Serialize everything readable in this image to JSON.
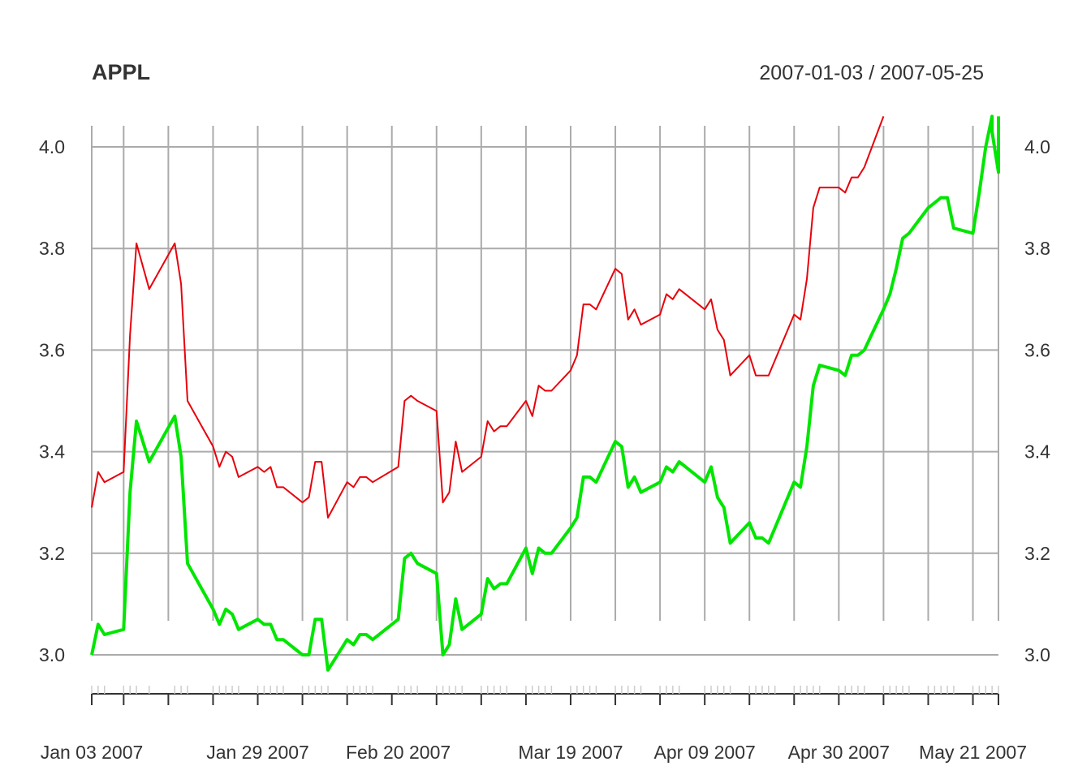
{
  "chart_data": {
    "type": "line",
    "title": "APPL",
    "date_range": "2007-01-03 / 2007-05-25",
    "ylim": [
      2.93,
      4.06
    ],
    "y_ticks": [
      "3.0",
      "3.2",
      "3.4",
      "3.6",
      "3.8",
      "4.0"
    ],
    "x_tick_labels": [
      {
        "date": "2007-01-03",
        "label": "Jan 03 2007"
      },
      {
        "date": "2007-01-29",
        "label": "Jan 29 2007"
      },
      {
        "date": "2007-02-20",
        "label": "Feb 20 2007"
      },
      {
        "date": "2007-03-19",
        "label": "Mar 19 2007"
      },
      {
        "date": "2007-04-09",
        "label": "Apr 09 2007"
      },
      {
        "date": "2007-04-30",
        "label": "Apr 30 2007"
      },
      {
        "date": "2007-05-21",
        "label": "May 21 2007"
      }
    ],
    "grid": true,
    "legend": "none",
    "series": [
      {
        "color": "#e8000b",
        "points": [
          [
            "2007-01-03",
            3.29
          ],
          [
            "2007-01-04",
            3.36
          ],
          [
            "2007-01-05",
            3.34
          ],
          [
            "2007-01-08",
            3.36
          ],
          [
            "2007-01-09",
            3.63
          ],
          [
            "2007-01-10",
            3.81
          ],
          [
            "2007-01-12",
            3.72
          ],
          [
            "2007-01-16",
            3.81
          ],
          [
            "2007-01-17",
            3.73
          ],
          [
            "2007-01-18",
            3.5
          ],
          [
            "2007-01-22",
            3.41
          ],
          [
            "2007-01-23",
            3.37
          ],
          [
            "2007-01-24",
            3.4
          ],
          [
            "2007-01-25",
            3.39
          ],
          [
            "2007-01-26",
            3.35
          ],
          [
            "2007-01-29",
            3.37
          ],
          [
            "2007-01-30",
            3.36
          ],
          [
            "2007-01-31",
            3.37
          ],
          [
            "2007-02-01",
            3.33
          ],
          [
            "2007-02-02",
            3.33
          ],
          [
            "2007-02-05",
            3.3
          ],
          [
            "2007-02-06",
            3.31
          ],
          [
            "2007-02-07",
            3.38
          ],
          [
            "2007-02-08",
            3.38
          ],
          [
            "2007-02-09",
            3.27
          ],
          [
            "2007-02-12",
            3.34
          ],
          [
            "2007-02-13",
            3.33
          ],
          [
            "2007-02-14",
            3.35
          ],
          [
            "2007-02-15",
            3.35
          ],
          [
            "2007-02-16",
            3.34
          ],
          [
            "2007-02-20",
            3.37
          ],
          [
            "2007-02-21",
            3.5
          ],
          [
            "2007-02-22",
            3.51
          ],
          [
            "2007-02-23",
            3.5
          ],
          [
            "2007-02-26",
            3.48
          ],
          [
            "2007-02-27",
            3.3
          ],
          [
            "2007-02-28",
            3.32
          ],
          [
            "2007-03-01",
            3.42
          ],
          [
            "2007-03-02",
            3.36
          ],
          [
            "2007-03-05",
            3.39
          ],
          [
            "2007-03-06",
            3.46
          ],
          [
            "2007-03-07",
            3.44
          ],
          [
            "2007-03-08",
            3.45
          ],
          [
            "2007-03-09",
            3.45
          ],
          [
            "2007-03-12",
            3.5
          ],
          [
            "2007-03-13",
            3.47
          ],
          [
            "2007-03-14",
            3.53
          ],
          [
            "2007-03-15",
            3.52
          ],
          [
            "2007-03-16",
            3.52
          ],
          [
            "2007-03-19",
            3.56
          ],
          [
            "2007-03-20",
            3.59
          ],
          [
            "2007-03-21",
            3.69
          ],
          [
            "2007-03-22",
            3.69
          ],
          [
            "2007-03-23",
            3.68
          ],
          [
            "2007-03-26",
            3.76
          ],
          [
            "2007-03-27",
            3.75
          ],
          [
            "2007-03-28",
            3.66
          ],
          [
            "2007-03-29",
            3.68
          ],
          [
            "2007-03-30",
            3.65
          ],
          [
            "2007-04-02",
            3.67
          ],
          [
            "2007-04-03",
            3.71
          ],
          [
            "2007-04-04",
            3.7
          ],
          [
            "2007-04-05",
            3.72
          ],
          [
            "2007-04-09",
            3.68
          ],
          [
            "2007-04-10",
            3.7
          ],
          [
            "2007-04-11",
            3.64
          ],
          [
            "2007-04-12",
            3.62
          ],
          [
            "2007-04-13",
            3.55
          ],
          [
            "2007-04-16",
            3.59
          ],
          [
            "2007-04-17",
            3.55
          ],
          [
            "2007-04-18",
            3.55
          ],
          [
            "2007-04-19",
            3.55
          ],
          [
            "2007-04-20",
            3.58
          ],
          [
            "2007-04-23",
            3.67
          ],
          [
            "2007-04-24",
            3.66
          ],
          [
            "2007-04-25",
            3.74
          ],
          [
            "2007-04-26",
            3.88
          ],
          [
            "2007-04-27",
            3.92
          ],
          [
            "2007-04-30",
            3.92
          ],
          [
            "2007-05-01",
            3.91
          ],
          [
            "2007-05-02",
            3.94
          ],
          [
            "2007-05-03",
            3.94
          ],
          [
            "2007-05-04",
            3.96
          ],
          [
            "2007-05-07",
            4.06
          ]
        ]
      },
      {
        "color": "#00e600",
        "points": [
          [
            "2007-01-03",
            3.0
          ],
          [
            "2007-01-04",
            3.06
          ],
          [
            "2007-01-05",
            3.04
          ],
          [
            "2007-01-08",
            3.05
          ],
          [
            "2007-01-09",
            3.32
          ],
          [
            "2007-01-10",
            3.46
          ],
          [
            "2007-01-12",
            3.38
          ],
          [
            "2007-01-16",
            3.47
          ],
          [
            "2007-01-17",
            3.39
          ],
          [
            "2007-01-18",
            3.18
          ],
          [
            "2007-01-22",
            3.09
          ],
          [
            "2007-01-23",
            3.06
          ],
          [
            "2007-01-24",
            3.09
          ],
          [
            "2007-01-25",
            3.08
          ],
          [
            "2007-01-26",
            3.05
          ],
          [
            "2007-01-29",
            3.07
          ],
          [
            "2007-01-30",
            3.06
          ],
          [
            "2007-01-31",
            3.06
          ],
          [
            "2007-02-01",
            3.03
          ],
          [
            "2007-02-02",
            3.03
          ],
          [
            "2007-02-05",
            3.0
          ],
          [
            "2007-02-06",
            3.0
          ],
          [
            "2007-02-07",
            3.07
          ],
          [
            "2007-02-08",
            3.07
          ],
          [
            "2007-02-09",
            2.97
          ],
          [
            "2007-02-12",
            3.03
          ],
          [
            "2007-02-13",
            3.02
          ],
          [
            "2007-02-14",
            3.04
          ],
          [
            "2007-02-15",
            3.04
          ],
          [
            "2007-02-16",
            3.03
          ],
          [
            "2007-02-20",
            3.07
          ],
          [
            "2007-02-21",
            3.19
          ],
          [
            "2007-02-22",
            3.2
          ],
          [
            "2007-02-23",
            3.18
          ],
          [
            "2007-02-26",
            3.16
          ],
          [
            "2007-02-27",
            3.0
          ],
          [
            "2007-02-28",
            3.02
          ],
          [
            "2007-03-01",
            3.11
          ],
          [
            "2007-03-02",
            3.05
          ],
          [
            "2007-03-05",
            3.08
          ],
          [
            "2007-03-06",
            3.15
          ],
          [
            "2007-03-07",
            3.13
          ],
          [
            "2007-03-08",
            3.14
          ],
          [
            "2007-03-09",
            3.14
          ],
          [
            "2007-03-12",
            3.21
          ],
          [
            "2007-03-13",
            3.16
          ],
          [
            "2007-03-14",
            3.21
          ],
          [
            "2007-03-15",
            3.2
          ],
          [
            "2007-03-16",
            3.2
          ],
          [
            "2007-03-19",
            3.25
          ],
          [
            "2007-03-20",
            3.27
          ],
          [
            "2007-03-21",
            3.35
          ],
          [
            "2007-03-22",
            3.35
          ],
          [
            "2007-03-23",
            3.34
          ],
          [
            "2007-03-26",
            3.42
          ],
          [
            "2007-03-27",
            3.41
          ],
          [
            "2007-03-28",
            3.33
          ],
          [
            "2007-03-29",
            3.35
          ],
          [
            "2007-03-30",
            3.32
          ],
          [
            "2007-04-02",
            3.34
          ],
          [
            "2007-04-03",
            3.37
          ],
          [
            "2007-04-04",
            3.36
          ],
          [
            "2007-04-05",
            3.38
          ],
          [
            "2007-04-09",
            3.34
          ],
          [
            "2007-04-10",
            3.37
          ],
          [
            "2007-04-11",
            3.31
          ],
          [
            "2007-04-12",
            3.29
          ],
          [
            "2007-04-13",
            3.22
          ],
          [
            "2007-04-16",
            3.26
          ],
          [
            "2007-04-17",
            3.23
          ],
          [
            "2007-04-18",
            3.23
          ],
          [
            "2007-04-19",
            3.22
          ],
          [
            "2007-04-20",
            3.25
          ],
          [
            "2007-04-23",
            3.34
          ],
          [
            "2007-04-24",
            3.33
          ],
          [
            "2007-04-25",
            3.41
          ],
          [
            "2007-04-26",
            3.53
          ],
          [
            "2007-04-27",
            3.57
          ],
          [
            "2007-04-30",
            3.56
          ],
          [
            "2007-05-01",
            3.55
          ],
          [
            "2007-05-02",
            3.59
          ],
          [
            "2007-05-03",
            3.59
          ],
          [
            "2007-05-04",
            3.6
          ],
          [
            "2007-05-07",
            3.68
          ],
          [
            "2007-05-08",
            3.71
          ],
          [
            "2007-05-09",
            3.76
          ],
          [
            "2007-05-10",
            3.82
          ],
          [
            "2007-05-11",
            3.83
          ],
          [
            "2007-05-14",
            3.88
          ],
          [
            "2007-05-15",
            3.89
          ],
          [
            "2007-05-16",
            3.9
          ],
          [
            "2007-05-17",
            3.9
          ],
          [
            "2007-05-18",
            3.84
          ],
          [
            "2007-05-21",
            3.83
          ],
          [
            "2007-05-22",
            3.91
          ],
          [
            "2007-05-23",
            4.0
          ],
          [
            "2007-05-24",
            4.06
          ],
          [
            "2007-05-24",
            4.03
          ],
          [
            "2007-05-25",
            3.95
          ],
          [
            "2007-05-25",
            4.06
          ]
        ]
      }
    ]
  }
}
